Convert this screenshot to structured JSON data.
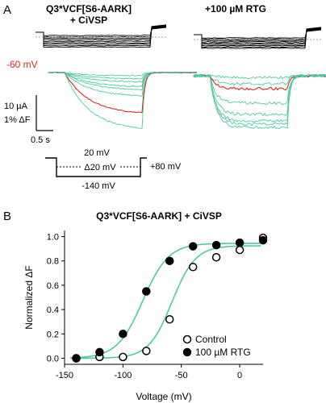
{
  "panel_a": {
    "label": "A",
    "control_title_line1": "Q3*VCF[S6-AARK]",
    "control_title_line2": "+ CiVSP",
    "drug_title": "+100 µM RTG",
    "holding_label": "-60 mV",
    "scale_current": "10 µA",
    "scale_fluor": "1% ΔF",
    "scale_time": "0.5 s",
    "protocol": {
      "top_voltage": "20 mV",
      "step_label": "Δ20 mV",
      "bottom_voltage": "-140 mV",
      "tail_voltage": "+80 mV"
    },
    "colors": {
      "trace": "#4fc9a4",
      "highlight": "#d42a1e",
      "current": "#000000"
    }
  },
  "panel_b": {
    "label": "B",
    "title": "Q3*VCF[S6-AARK] + CiVSP"
  },
  "chart_data": {
    "type": "scatter",
    "title": "Q3*VCF[S6-AARK] + CiVSP",
    "xlabel": "Voltage (mV)",
    "ylabel": "Normalized ΔF",
    "xlim": [
      -150,
      20
    ],
    "ylim": [
      -0.05,
      1.05
    ],
    "xticks": [
      -150,
      -100,
      -50,
      0
    ],
    "yticks": [
      0.0,
      0.2,
      0.4,
      0.6,
      0.8,
      1.0
    ],
    "xtick_labels": [
      "-150",
      "-100",
      "-50",
      "0"
    ],
    "ytick_labels": [
      "0.0",
      "0.2",
      "0.4",
      "0.6",
      "0.8",
      "1.0"
    ],
    "legend_position": "lower-right",
    "fit_color": "#4fc9a4",
    "series": [
      {
        "name": "Control",
        "marker": "open-circle",
        "x": [
          -140,
          -120,
          -100,
          -80,
          -60,
          -40,
          -20,
          0,
          20
        ],
        "y": [
          0.0,
          0.01,
          0.01,
          0.06,
          0.32,
          0.75,
          0.83,
          0.89,
          0.99
        ],
        "fit": {
          "v_half": -58,
          "slope": 10,
          "max": 0.925
        }
      },
      {
        "name": "100 µM RTG",
        "marker": "filled-circle",
        "x": [
          -140,
          -120,
          -100,
          -80,
          -60,
          -40,
          -20,
          0,
          20
        ],
        "y": [
          0.0,
          0.05,
          0.2,
          0.55,
          0.8,
          0.92,
          0.93,
          0.95,
          0.97
        ],
        "fit": {
          "v_half": -83,
          "slope": 11,
          "max": 0.945
        }
      }
    ]
  }
}
